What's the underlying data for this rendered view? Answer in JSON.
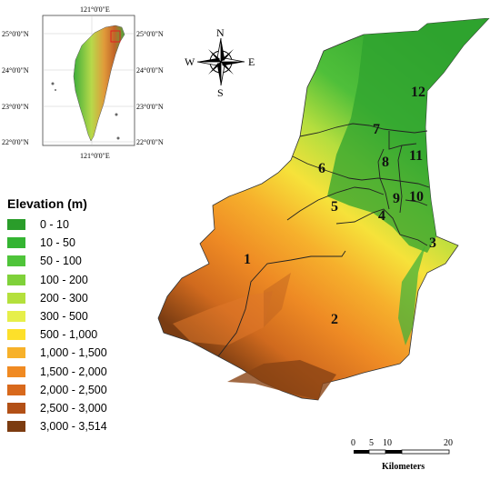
{
  "inset": {
    "top_lon": "121°0'0\"E",
    "bottom_lon": "121°0'0\"E",
    "lat_labels_left": [
      "25°0'0\"N",
      "24°0'0\"N",
      "23°0'0\"N",
      "22°0'0\"N"
    ],
    "lat_labels_right": [
      "25°0'0\"N",
      "24°0'0\"N",
      "23°0'0\"N",
      "22°0'0\"N"
    ]
  },
  "compass": {
    "n": "N",
    "s": "S",
    "e": "E",
    "w": "W"
  },
  "legend": {
    "title": "Elevation (m)",
    "items": [
      {
        "label": "0 - 10",
        "color": "#2a9d2a"
      },
      {
        "label": "10 - 50",
        "color": "#34b432"
      },
      {
        "label": "50 - 100",
        "color": "#4fc43a"
      },
      {
        "label": "100 - 200",
        "color": "#7fd13a"
      },
      {
        "label": "200 - 300",
        "color": "#b4e03c"
      },
      {
        "label": "300 - 500",
        "color": "#e6ef4a"
      },
      {
        "label": "500 - 1,000",
        "color": "#fde02a"
      },
      {
        "label": "1,000 - 1,500",
        "color": "#f7b12a"
      },
      {
        "label": "1,500 - 2,000",
        "color": "#f08a22"
      },
      {
        "label": "2,000 - 2,500",
        "color": "#d8691c"
      },
      {
        "label": "2,500 - 3,000",
        "color": "#b25016"
      },
      {
        "label": "3,000 - 3,514",
        "color": "#7c3c10"
      }
    ]
  },
  "districts": [
    "1",
    "2",
    "3",
    "4",
    "5",
    "6",
    "7",
    "8",
    "9",
    "10",
    "11",
    "12"
  ],
  "scale_bar": {
    "ticks": [
      "0",
      "5",
      "10",
      "20"
    ],
    "unit": "Kilometers"
  }
}
